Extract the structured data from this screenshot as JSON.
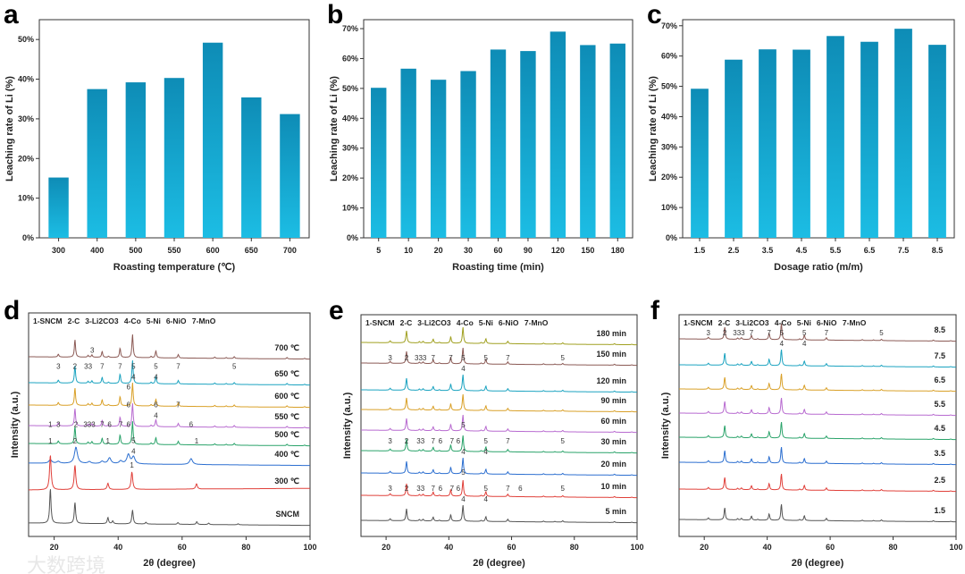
{
  "chart_data": [
    {
      "panel": "a",
      "type": "bar",
      "ylabel": "Leaching rate of Li (%)",
      "xlabel": "Roasting temperature (℃)",
      "categories": [
        "300",
        "400",
        "500",
        "550",
        "600",
        "650",
        "700"
      ],
      "values": [
        15.2,
        37.5,
        39.2,
        40.3,
        49.2,
        35.4,
        31.2
      ],
      "ylim": [
        0,
        55
      ],
      "yticks": [
        "0%",
        "10%",
        "20%",
        "30%",
        "40%",
        "50%"
      ]
    },
    {
      "panel": "b",
      "type": "bar",
      "ylabel": "Leaching rate of Li (%)",
      "xlabel": "Roasting time (min)",
      "categories": [
        "5",
        "10",
        "20",
        "30",
        "60",
        "90",
        "120",
        "150",
        "180"
      ],
      "values": [
        50.2,
        56.6,
        52.9,
        55.8,
        63.0,
        62.5,
        69.0,
        64.5,
        65.0
      ],
      "ylim": [
        0,
        73
      ],
      "yticks": [
        "0%",
        "10%",
        "20%",
        "30%",
        "40%",
        "50%",
        "60%",
        "70%"
      ]
    },
    {
      "panel": "c",
      "type": "bar",
      "ylabel": "Leaching rate of Li (%)",
      "xlabel": "Dosage ratio (m/m)",
      "categories": [
        "1.5",
        "2.5",
        "3.5",
        "4.5",
        "5.5",
        "6.5",
        "7.5",
        "8.5"
      ],
      "values": [
        49.2,
        58.8,
        62.2,
        62.1,
        66.6,
        64.7,
        69.0,
        63.7
      ],
      "ylim": [
        0,
        72
      ],
      "yticks": [
        "0%",
        "10%",
        "20%",
        "30%",
        "40%",
        "50%",
        "60%",
        "70%"
      ]
    },
    {
      "panel": "d",
      "type": "line",
      "ylabel": "Intensity (a.u.)",
      "xlabel": "2θ (degree)",
      "xlim": [
        12,
        100
      ],
      "xticks": [
        "20",
        "40",
        "60",
        "80",
        "100"
      ],
      "legend": [
        "1-SNCM",
        "2-C",
        "3-Li2CO3",
        "4-Co",
        "5-Ni",
        "6-NiO",
        "7-MnO"
      ],
      "series": [
        {
          "name": "700 ℃",
          "color": "#8b5a55",
          "kind": "c"
        },
        {
          "name": "650 ℃",
          "color": "#1ba3c0",
          "kind": "c"
        },
        {
          "name": "600 ℃",
          "color": "#d9a028",
          "kind": "c",
          "ann": [
            [
              21.3,
              "3"
            ],
            [
              26.5,
              "2"
            ],
            [
              30.6,
              "33"
            ],
            [
              31.9,
              "3"
            ],
            [
              35,
              "7"
            ],
            [
              40.6,
              "7"
            ],
            [
              44.8,
              "5"
            ],
            [
              44.8,
              "4"
            ],
            [
              51.8,
              "5"
            ],
            [
              51.8,
              "4"
            ],
            [
              58.8,
              "7"
            ],
            [
              76.3,
              "5"
            ]
          ]
        },
        {
          "name": "550 ℃",
          "color": "#b86bd0",
          "kind": "c",
          "ann": [
            [
              43.2,
              "6"
            ]
          ]
        },
        {
          "name": "500 ℃",
          "color": "#2aa36a",
          "kind": "c",
          "ann": [
            [
              43.2,
              "6"
            ],
            [
              51.8,
              "6"
            ],
            [
              51.8,
              "4"
            ],
            [
              58.8,
              "7"
            ]
          ]
        },
        {
          "name": "400 ℃",
          "color": "#2c6fd0",
          "kind": "m",
          "ann": [
            [
              18.8,
              "1"
            ],
            [
              21.3,
              "3"
            ],
            [
              26.8,
              "2"
            ],
            [
              31,
              "333"
            ],
            [
              35,
              "7"
            ],
            [
              37.3,
              "6"
            ],
            [
              40.8,
              "7"
            ],
            [
              43.2,
              "6"
            ],
            [
              44.8,
              "5"
            ],
            [
              44.8,
              "4"
            ],
            [
              62.8,
              "6"
            ]
          ]
        },
        {
          "name": "300 ℃",
          "color": "#e0403a",
          "kind": "s2",
          "ann": [
            [
              18.8,
              "1"
            ],
            [
              26.5,
              "2"
            ],
            [
              36.8,
              "1"
            ],
            [
              44.3,
              "1"
            ],
            [
              64.5,
              "1"
            ]
          ]
        },
        {
          "name": "SNCM",
          "color": "#555555",
          "kind": "s"
        }
      ]
    },
    {
      "panel": "e",
      "type": "line",
      "ylabel": "Intensity (a.u.)",
      "xlabel": "2θ (degree)",
      "xlim": [
        12,
        100
      ],
      "xticks": [
        "20",
        "40",
        "60",
        "80",
        "100"
      ],
      "legend": [
        "1-SNCM",
        "2-C",
        "3-Li2CO3",
        "4-Co",
        "5-Ni",
        "6-NiO",
        "7-MnO"
      ],
      "series": [
        {
          "name": "180 min",
          "color": "#a0a020",
          "kind": "c"
        },
        {
          "name": "150 min",
          "color": "#8b5a55",
          "kind": "c"
        },
        {
          "name": "120 min",
          "color": "#1ba3c0",
          "kind": "c",
          "ann": [
            [
              21.3,
              "3"
            ],
            [
              26.5,
              "2"
            ],
            [
              31,
              "333"
            ],
            [
              35,
              "7"
            ],
            [
              40.6,
              "7"
            ],
            [
              44.6,
              "5"
            ],
            [
              44.6,
              "4"
            ],
            [
              51.8,
              "5"
            ],
            [
              58.8,
              "7"
            ],
            [
              76.3,
              "5"
            ]
          ]
        },
        {
          "name": "90 min",
          "color": "#d9a028",
          "kind": "c"
        },
        {
          "name": "60 min",
          "color": "#b86bd0",
          "kind": "c"
        },
        {
          "name": "30 min",
          "color": "#2aa36a",
          "kind": "c"
        },
        {
          "name": "20 min",
          "color": "#2c6fd0",
          "kind": "c",
          "ann": [
            [
              21.3,
              "3"
            ],
            [
              26.5,
              "2"
            ],
            [
              31,
              "33"
            ],
            [
              35,
              "7"
            ],
            [
              37.3,
              "6"
            ],
            [
              41,
              "7"
            ],
            [
              43,
              "6"
            ],
            [
              44.6,
              "5"
            ],
            [
              44.6,
              "4"
            ],
            [
              51.8,
              "5"
            ],
            [
              51.8,
              "4"
            ],
            [
              58.8,
              "7"
            ],
            [
              76.3,
              "5"
            ]
          ]
        },
        {
          "name": "10 min",
          "color": "#e0403a",
          "kind": "c"
        },
        {
          "name": "5 min",
          "color": "#555555",
          "kind": "c",
          "ann": [
            [
              21.3,
              "3"
            ],
            [
              26.5,
              "2"
            ],
            [
              31,
              "33"
            ],
            [
              35,
              "7"
            ],
            [
              37.3,
              "6"
            ],
            [
              41,
              "7"
            ],
            [
              43,
              "6"
            ],
            [
              44.6,
              "5"
            ],
            [
              44.6,
              "4"
            ],
            [
              51.8,
              "5"
            ],
            [
              51.8,
              "4"
            ],
            [
              58.8,
              "7"
            ],
            [
              62.8,
              "6"
            ],
            [
              76.3,
              "5"
            ]
          ]
        }
      ]
    },
    {
      "panel": "f",
      "type": "line",
      "ylabel": "Intensity (a.u.)",
      "xlabel": "2θ (degree)",
      "xlim": [
        12,
        100
      ],
      "xticks": [
        "20",
        "40",
        "60",
        "80",
        "100"
      ],
      "legend": [
        "1-SNCM",
        "2-C",
        "3-Li2CO3",
        "4-Co",
        "5-Ni",
        "6-NiO",
        "7-MnO"
      ],
      "series": [
        {
          "name": "8.5",
          "color": "#8b5a55",
          "kind": "c"
        },
        {
          "name": "7.5",
          "color": "#1ba3c0",
          "kind": "c",
          "ann": [
            [
              21.3,
              "3"
            ],
            [
              26.5,
              "2"
            ],
            [
              31,
              "333"
            ],
            [
              35,
              "7"
            ],
            [
              40.6,
              "7"
            ],
            [
              44.6,
              "5"
            ],
            [
              44.6,
              "4"
            ],
            [
              51.8,
              "5"
            ],
            [
              51.8,
              "4"
            ],
            [
              58.8,
              "7"
            ],
            [
              76.3,
              "5"
            ]
          ]
        },
        {
          "name": "6.5",
          "color": "#d9a028",
          "kind": "c"
        },
        {
          "name": "5.5",
          "color": "#b86bd0",
          "kind": "c"
        },
        {
          "name": "4.5",
          "color": "#2aa36a",
          "kind": "c"
        },
        {
          "name": "3.5",
          "color": "#2c6fd0",
          "kind": "c"
        },
        {
          "name": "2.5",
          "color": "#e0403a",
          "kind": "c"
        },
        {
          "name": "1.5",
          "color": "#555555",
          "kind": "c"
        }
      ]
    }
  ],
  "panel_labels": [
    "a",
    "b",
    "c",
    "d",
    "e",
    "f"
  ],
  "watermark": "大数跨境",
  "colors": {
    "bar_top": "#0e8cb6",
    "bar_bottom": "#1cbde4"
  }
}
